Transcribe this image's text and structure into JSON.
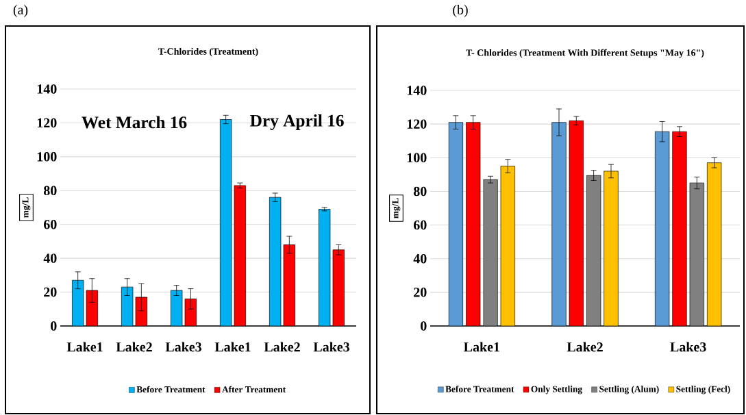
{
  "chart_data": [
    {
      "type": "bar",
      "title": "T-Chlorides (Treatment)",
      "ylabel": "mg/L",
      "categories": [
        "Lake1",
        "Lake2",
        "Lake3",
        "Lake1",
        "Lake2",
        "Lake3"
      ],
      "series": [
        {
          "name": "Before Treatment",
          "color": "#00b0f0",
          "values": [
            27,
            23,
            21,
            122,
            76,
            69
          ],
          "errors": [
            5,
            5,
            3,
            2.5,
            2.5,
            1
          ]
        },
        {
          "name": "After Treatment",
          "color": "#ff0000",
          "values": [
            21,
            17,
            16,
            83,
            48,
            45
          ],
          "errors": [
            7,
            8,
            6,
            1.5,
            5,
            3
          ]
        }
      ],
      "ylim": [
        0,
        140
      ],
      "yticks": [
        0,
        20,
        40,
        60,
        80,
        100,
        120,
        140
      ],
      "grid": "y",
      "legend": "bottom",
      "annotations": [
        "(a)",
        "Wet March 16",
        "Dry April 16"
      ]
    },
    {
      "type": "bar",
      "title": "T- Chlorides (Treatment With Different Setups \"May 16\")",
      "ylabel": "mg/L",
      "categories": [
        "Lake1",
        "Lake2",
        "Lake3"
      ],
      "series": [
        {
          "name": "Before Treatment",
          "color": "#5b9bd5",
          "values": [
            121,
            121,
            115.5
          ],
          "errors": [
            4,
            8,
            6
          ]
        },
        {
          "name": "Only Settling",
          "color": "#ff0000",
          "values": [
            121,
            122,
            115.5
          ],
          "errors": [
            4,
            2.5,
            3
          ]
        },
        {
          "name": "Settling (Alum)",
          "color": "#808080",
          "values": [
            87,
            89.5,
            85
          ],
          "errors": [
            2,
            3,
            3.5
          ]
        },
        {
          "name": "Settling (Fecl)",
          "color": "#ffc000",
          "values": [
            95,
            92,
            97
          ],
          "errors": [
            4,
            4,
            3
          ]
        }
      ],
      "ylim": [
        0,
        140
      ],
      "yticks": [
        0,
        20,
        40,
        60,
        80,
        100,
        120,
        140
      ],
      "grid": "y",
      "legend": "bottom",
      "annotations": [
        "(b)"
      ]
    }
  ]
}
